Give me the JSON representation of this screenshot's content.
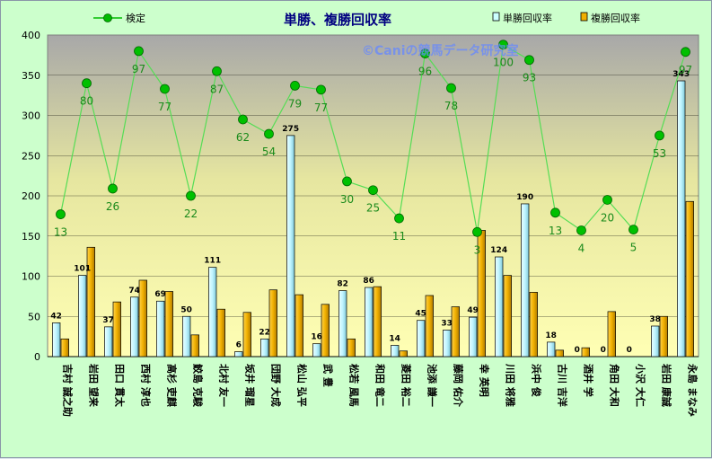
{
  "chart_data": {
    "type": "bar",
    "title": "単勝、複勝回収率",
    "watermark": "©Caniの競馬データ研究室",
    "ylim": [
      0,
      400
    ],
    "yticks": [
      0,
      50,
      100,
      150,
      200,
      250,
      300,
      350,
      400
    ],
    "grid": true,
    "legend_placement": "top",
    "categories": [
      "吉村 誠之助",
      "岩田 望来",
      "田口 貫太",
      "西村 淳也",
      "高杉 吏麒",
      "鮫島 克駿",
      "北村 友一",
      "坂井 瑠星",
      "団野 大成",
      "松山 弘平",
      "武 豊",
      "松若 風馬",
      "和田 竜二",
      "菱田 裕二",
      "池添 謙一",
      "藤岡 佑介",
      "幸 英明",
      "川田 将雅",
      "浜中 俊",
      "古川 吉洋",
      "酒井 学",
      "角田 大和",
      "小沢 大仁",
      "岩田 康誠",
      "永島 まなみ"
    ],
    "series": [
      {
        "name": "単勝回収率",
        "kind": "bar",
        "color": "#ccffff",
        "values": [
          42,
          101,
          37,
          74,
          69,
          50,
          111,
          6,
          22,
          275,
          16,
          82,
          86,
          14,
          45,
          33,
          49,
          124,
          190,
          18,
          0,
          0,
          0,
          38,
          343
        ],
        "labels": [
          "42",
          "101",
          "37",
          "74",
          "69",
          "50",
          "111",
          "6",
          "22",
          "275",
          "16",
          "82",
          "86",
          "14",
          "45",
          "33",
          "49",
          "124",
          "190",
          "18",
          "0",
          "0",
          "0",
          "38",
          "343"
        ]
      },
      {
        "name": "複勝回収率",
        "kind": "bar",
        "color": "#f0b000",
        "values": [
          22,
          136,
          68,
          95,
          81,
          27,
          59,
          55,
          83,
          77,
          65,
          22,
          87,
          7,
          76,
          62,
          157,
          101,
          80,
          8,
          11,
          56,
          0,
          50,
          193
        ]
      },
      {
        "name": "検定",
        "kind": "line",
        "color": "#00bb00",
        "values": [
          177,
          340,
          209,
          380,
          333,
          200,
          355,
          295,
          277,
          337,
          332,
          218,
          207,
          172,
          377,
          334,
          155,
          388,
          369,
          179,
          157,
          195,
          158,
          275,
          379
        ],
        "labels": [
          "13",
          "80",
          "26",
          "97",
          "77",
          "22",
          "87",
          "62",
          "54",
          "79",
          "77",
          "30",
          "25",
          "11",
          "96",
          "78",
          "3",
          "100",
          "93",
          "13",
          "4",
          "20",
          "5",
          "53",
          "97"
        ]
      }
    ]
  }
}
